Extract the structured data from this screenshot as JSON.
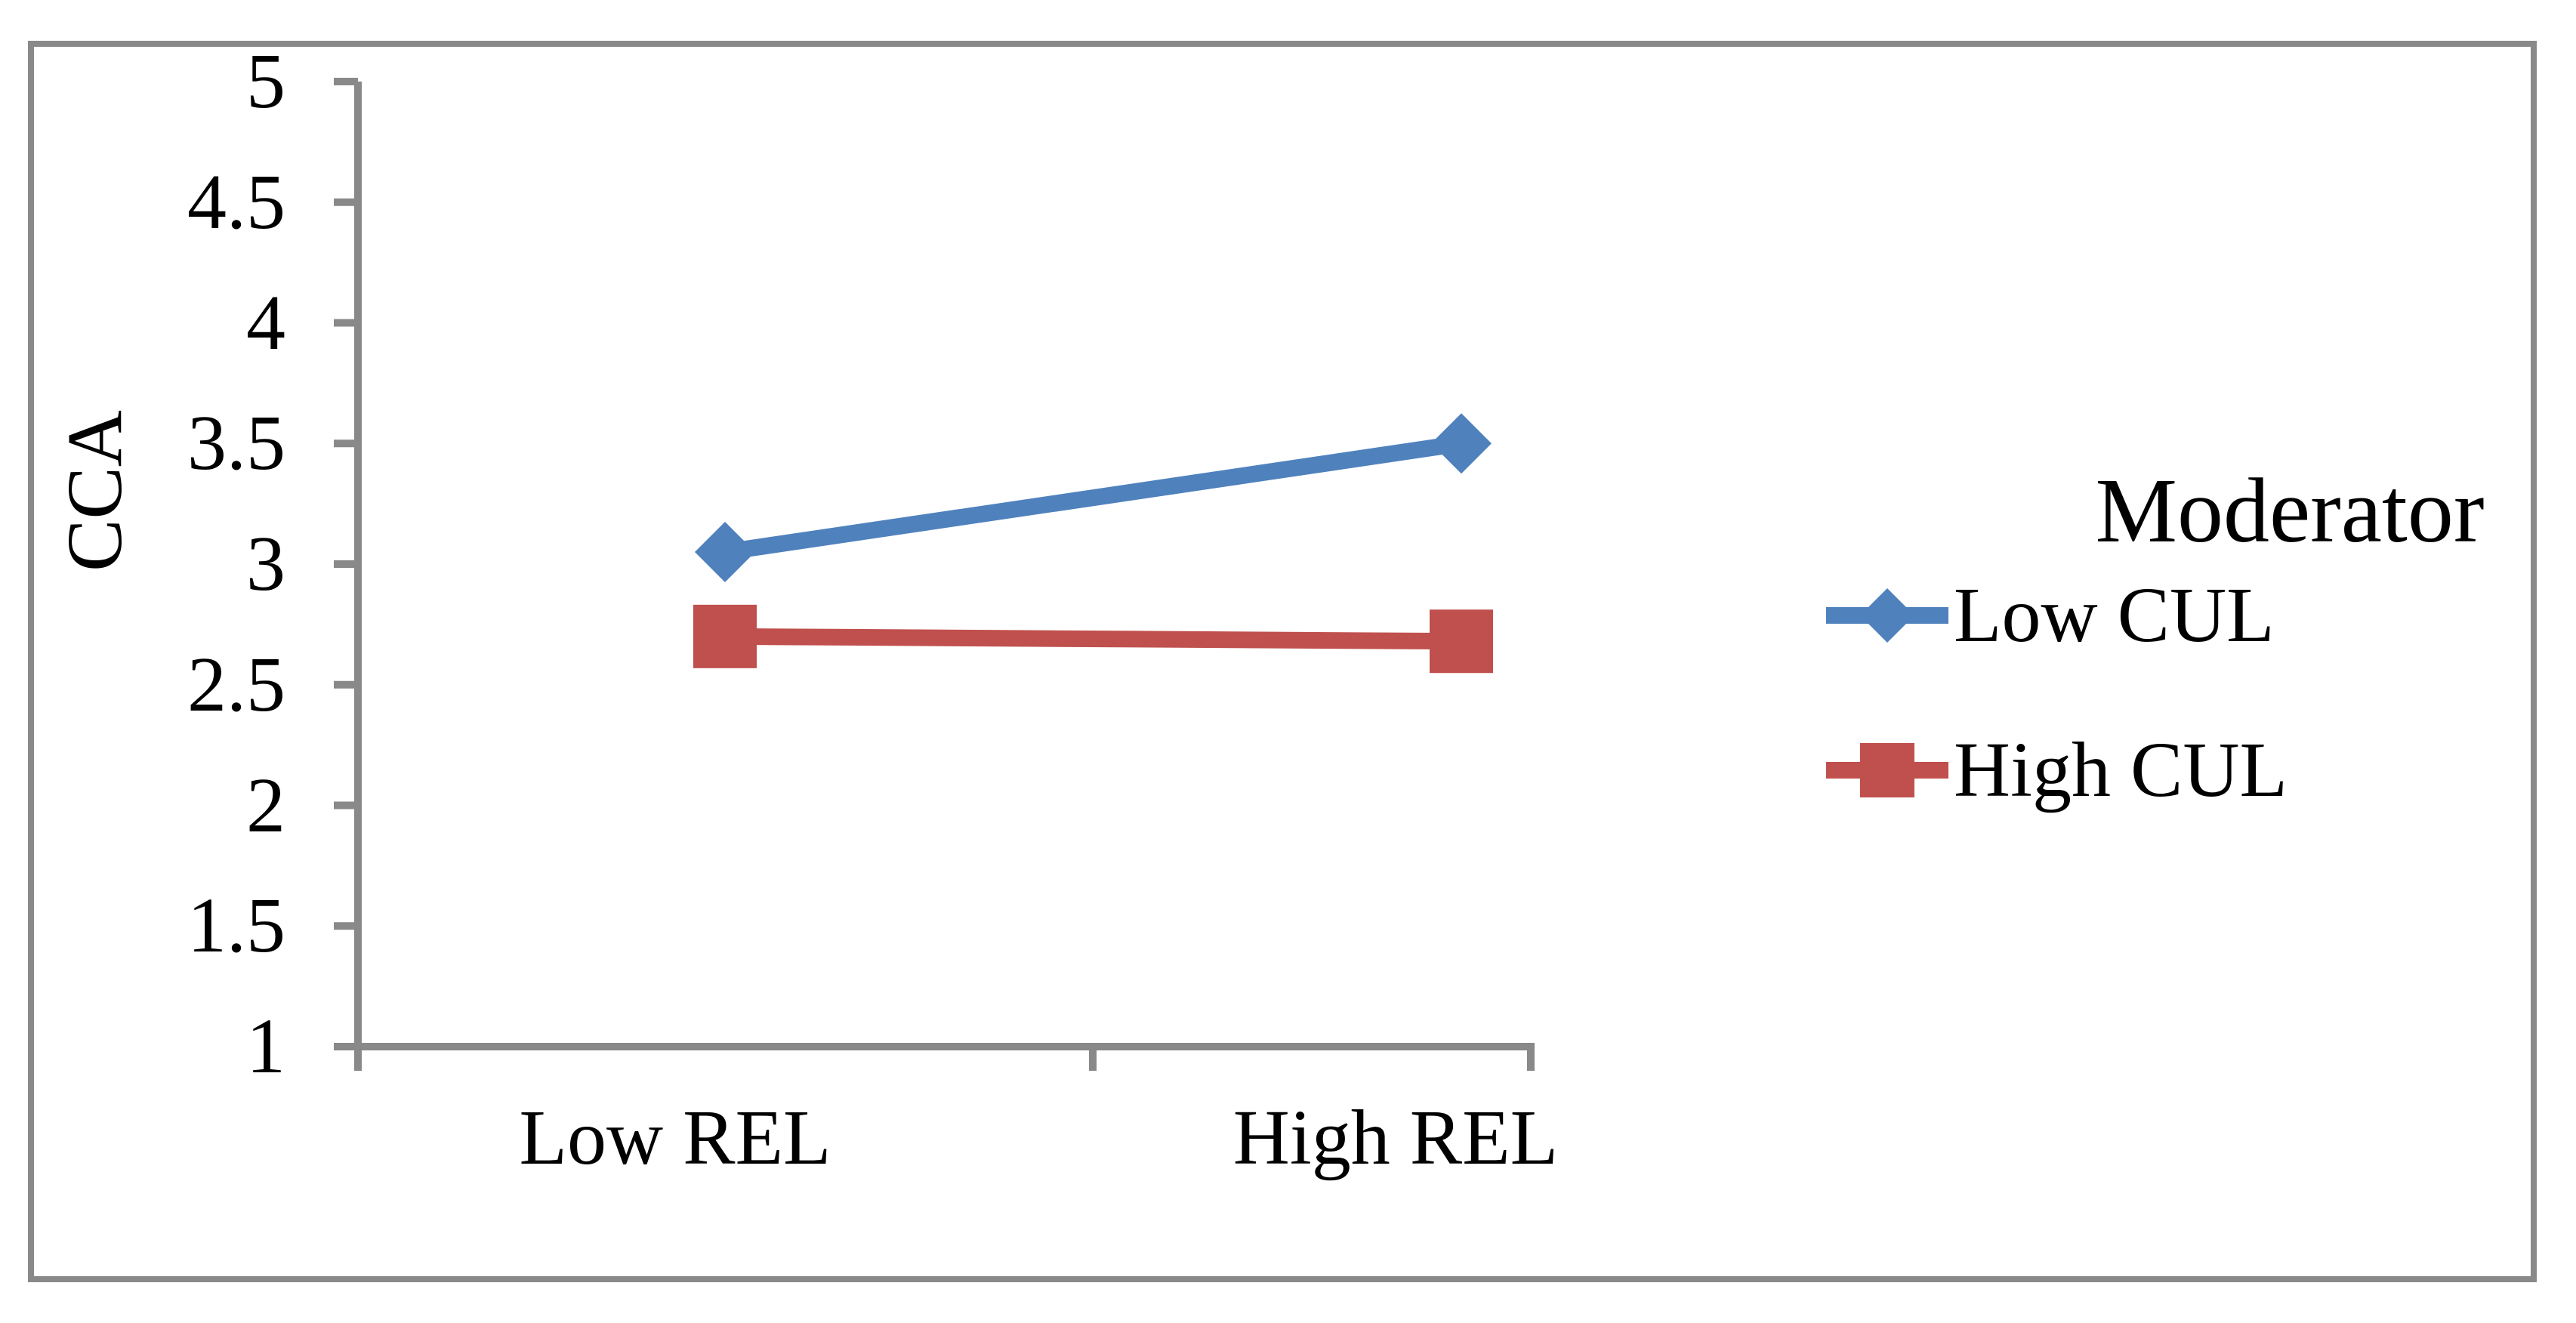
{
  "figure": {
    "background": "#ffffff",
    "frame_color": "#898989"
  },
  "chart_data": {
    "type": "line",
    "title": "",
    "xlabel": "",
    "ylabel": "CCA",
    "categories": [
      "Low REL",
      "High REL"
    ],
    "series": [
      {
        "name": "Low CUL",
        "color": "#4F81BD",
        "marker": "diamond",
        "values": [
          3.05,
          3.5
        ]
      },
      {
        "name": "High CUL",
        "color": "#C0504D",
        "marker": "square",
        "values": [
          2.7,
          2.68
        ]
      }
    ],
    "ylim": [
      1,
      5
    ],
    "y_tick_labels": [
      "1",
      "1.5",
      "2",
      "2.5",
      "3",
      "3.5",
      "4",
      "4.5",
      "5"
    ],
    "grid": false,
    "axis_color": "#898989",
    "legend": {
      "title": "Moderator",
      "position": "right"
    }
  }
}
